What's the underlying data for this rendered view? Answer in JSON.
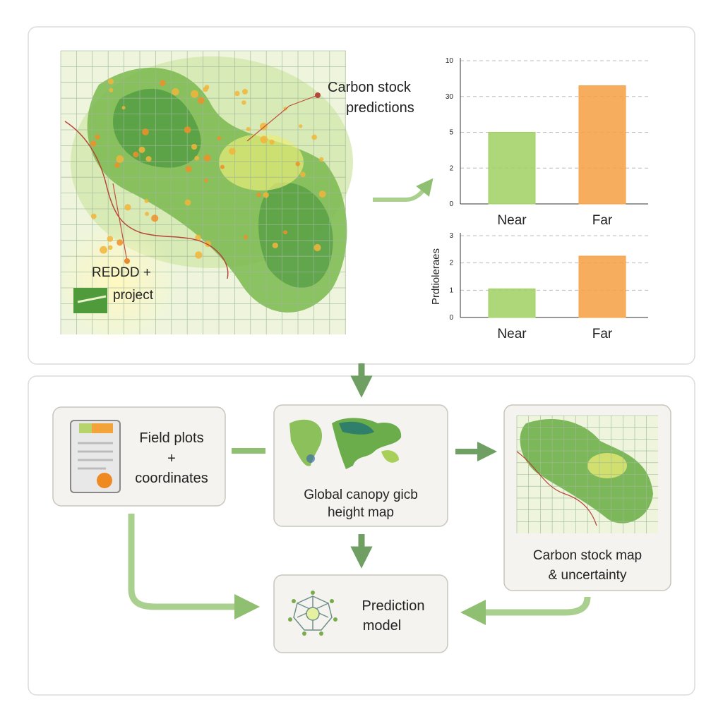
{
  "map": {
    "callout": [
      "Carbon stock",
      "predictions"
    ],
    "project": [
      "REDDD +",
      "project"
    ]
  },
  "charts": [
    {
      "type": "bar",
      "categories": [
        "Near",
        "Far"
      ],
      "values": [
        2,
        3.3
      ],
      "colors": [
        "#9fd060",
        "#f5a042"
      ],
      "ylim": [
        0,
        4
      ],
      "yticks": [
        0,
        {
          "value": 1,
          "label": "2"
        },
        {
          "value": 2,
          "label": "5"
        },
        {
          "value": 3,
          "label": "30"
        },
        {
          "value": 4,
          "label": "10"
        }
      ],
      "grid": true
    },
    {
      "type": "bar",
      "categories": [
        "Near",
        "Far"
      ],
      "values": [
        1.05,
        2.25
      ],
      "colors": [
        "#9fd060",
        "#f5a042"
      ],
      "ylabel": "Prdtioleraes",
      "ylim": [
        0,
        3
      ],
      "yticks": [
        0,
        1,
        2,
        3
      ],
      "grid": true
    }
  ],
  "flow": {
    "nodes": [
      {
        "label": [
          "Field plots",
          "+",
          "coordinates"
        ]
      },
      {
        "label": [
          "Global canopy gicb",
          "height map"
        ]
      },
      {
        "label": [
          "Carbon stock map",
          "& uncertainty"
        ]
      },
      {
        "label": [
          "Prediction",
          "model"
        ]
      }
    ]
  }
}
